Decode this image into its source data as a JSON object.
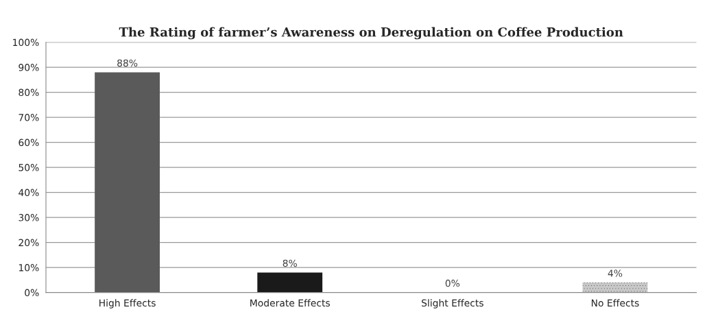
{
  "chart_data": {
    "type": "bar",
    "title": "The Rating of farmer’s Awareness on Deregulation on Coffee Production",
    "categories": [
      "High Effects",
      "Moderate Effects",
      "Slight Effects",
      "No Effects"
    ],
    "values": [
      88,
      8,
      0,
      4
    ],
    "colors": [
      "#5a5a5a",
      "#1a1a1a",
      "#808080",
      "#c8c8c8"
    ],
    "value_labels": [
      "88%",
      "8%",
      "0%",
      "4%"
    ],
    "ylim": [
      0,
      100
    ],
    "yticks": [
      {
        "value": 0,
        "label": "0%"
      },
      {
        "value": 10,
        "label": "10%"
      },
      {
        "value": 20,
        "label": "20%"
      },
      {
        "value": 30,
        "label": "30%"
      },
      {
        "value": 40,
        "label": "40%"
      },
      {
        "value": 50,
        "label": "50%"
      },
      {
        "value": 60,
        "label": "60%"
      },
      {
        "value": 70,
        "label": "70%"
      },
      {
        "value": 80,
        "label": "80%"
      },
      {
        "value": 90,
        "label": "90%"
      },
      {
        "value": 100,
        "label": "100%"
      }
    ],
    "grid": "y"
  }
}
